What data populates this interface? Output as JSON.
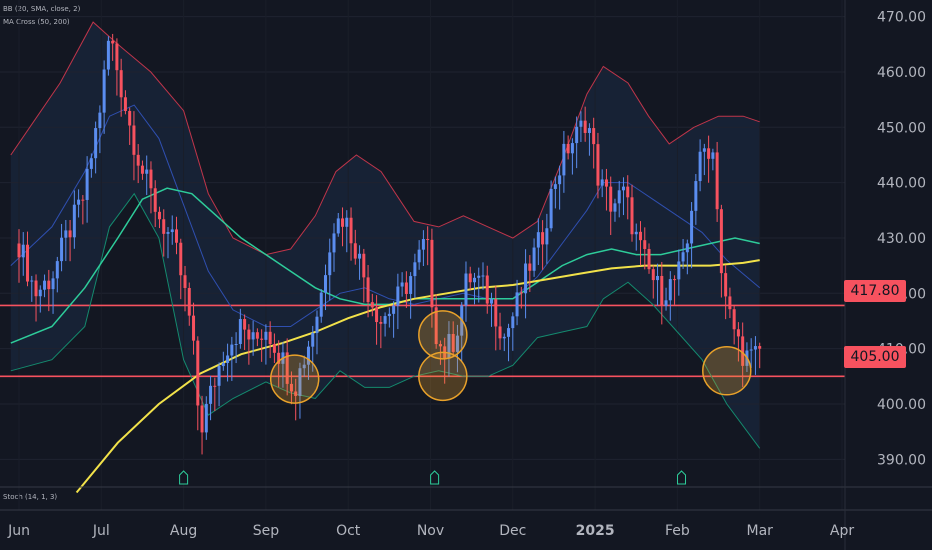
{
  "indicators": {
    "bb": "BB (20, SMA, close, 2)",
    "ma": "MA Cross (50, 200)",
    "stoch": "Stoch (14, 1, 3)"
  },
  "colors": {
    "background": "#131722",
    "candle_up": "#5b8def",
    "candle_down": "#f7525f",
    "bb_upper": "#c0354a",
    "bb_basis": "#2f4fb0",
    "bb_lower": "#148a6e",
    "bb_fill": "#1c2b45",
    "ma50": "#2ecc9a",
    "ma200": "#f2e24a",
    "level_line": "#f7525f",
    "circle": "#e8a12a"
  },
  "chart_data": {
    "type": "line",
    "y_axis": {
      "range": [
        385,
        473
      ],
      "ticks": [
        "470.00",
        "460.00",
        "450.00",
        "440.00",
        "430.00",
        "420.00",
        "410.00",
        "400.00",
        "390.00"
      ],
      "tick_values": [
        470,
        460,
        450,
        440,
        430,
        420,
        410,
        400,
        390
      ]
    },
    "x_axis": {
      "ticks": [
        "Jun",
        "Jul",
        "Aug",
        "Sep",
        "Oct",
        "Nov",
        "Dec",
        "2025",
        "Feb",
        "Mar",
        "Apr"
      ],
      "tick_months": [
        0,
        1,
        2,
        3,
        4,
        5,
        6,
        7,
        8,
        9,
        10
      ]
    },
    "levels": [
      {
        "value": 417.8,
        "label": "417.80"
      },
      {
        "value": 405.0,
        "label": "405.00"
      }
    ],
    "highlights": [
      {
        "month": 3.35,
        "price": 404.5
      },
      {
        "month": 5.15,
        "price": 412.5
      },
      {
        "month": 5.15,
        "price": 405.0
      },
      {
        "month": 8.6,
        "price": 406.0
      }
    ],
    "earnings_markers": [
      2.0,
      5.05,
      8.05
    ],
    "series": [
      {
        "key": "bb_upper",
        "points": [
          [
            -0.1,
            445
          ],
          [
            0.5,
            458
          ],
          [
            0.9,
            469
          ],
          [
            1.2,
            465
          ],
          [
            1.6,
            460
          ],
          [
            2.0,
            453
          ],
          [
            2.3,
            438
          ],
          [
            2.6,
            430
          ],
          [
            3.0,
            427
          ],
          [
            3.3,
            428
          ],
          [
            3.6,
            434
          ],
          [
            3.85,
            442
          ],
          [
            4.1,
            445
          ],
          [
            4.4,
            442
          ],
          [
            4.8,
            433
          ],
          [
            5.1,
            432
          ],
          [
            5.4,
            434
          ],
          [
            5.7,
            432
          ],
          [
            6.0,
            430
          ],
          [
            6.3,
            433
          ],
          [
            6.6,
            444
          ],
          [
            6.9,
            456
          ],
          [
            7.1,
            461
          ],
          [
            7.4,
            458
          ],
          [
            7.65,
            452
          ],
          [
            7.9,
            447
          ],
          [
            8.2,
            450
          ],
          [
            8.5,
            452
          ],
          [
            8.8,
            452
          ],
          [
            9.0,
            451
          ]
        ]
      },
      {
        "key": "bb_basis",
        "points": [
          [
            -0.1,
            425
          ],
          [
            0.4,
            432
          ],
          [
            0.8,
            442
          ],
          [
            1.1,
            452
          ],
          [
            1.4,
            454
          ],
          [
            1.7,
            448
          ],
          [
            2.0,
            436
          ],
          [
            2.3,
            424
          ],
          [
            2.6,
            417
          ],
          [
            3.0,
            414
          ],
          [
            3.3,
            414
          ],
          [
            3.6,
            417
          ],
          [
            3.9,
            420
          ],
          [
            4.2,
            421
          ],
          [
            4.5,
            419
          ],
          [
            4.8,
            418
          ],
          [
            5.1,
            419
          ],
          [
            5.4,
            420
          ],
          [
            5.7,
            419
          ],
          [
            6.0,
            419
          ],
          [
            6.3,
            423
          ],
          [
            6.6,
            429
          ],
          [
            6.9,
            435
          ],
          [
            7.1,
            440
          ],
          [
            7.4,
            440
          ],
          [
            7.7,
            437
          ],
          [
            8.0,
            434
          ],
          [
            8.3,
            431
          ],
          [
            8.6,
            426
          ],
          [
            9.0,
            421
          ]
        ]
      },
      {
        "key": "bb_lower",
        "points": [
          [
            -0.1,
            406
          ],
          [
            0.4,
            408
          ],
          [
            0.8,
            414
          ],
          [
            1.1,
            432
          ],
          [
            1.4,
            438
          ],
          [
            1.7,
            430
          ],
          [
            2.0,
            408
          ],
          [
            2.3,
            398
          ],
          [
            2.6,
            401
          ],
          [
            3.0,
            404
          ],
          [
            3.3,
            402
          ],
          [
            3.6,
            401
          ],
          [
            3.9,
            406
          ],
          [
            4.2,
            403
          ],
          [
            4.5,
            403
          ],
          [
            4.8,
            405
          ],
          [
            5.1,
            406
          ],
          [
            5.4,
            405
          ],
          [
            5.7,
            405
          ],
          [
            6.0,
            407
          ],
          [
            6.3,
            412
          ],
          [
            6.6,
            413
          ],
          [
            6.9,
            414
          ],
          [
            7.1,
            419
          ],
          [
            7.4,
            422
          ],
          [
            7.7,
            418
          ],
          [
            8.0,
            413
          ],
          [
            8.3,
            408
          ],
          [
            8.6,
            400
          ],
          [
            9.0,
            392
          ]
        ]
      },
      {
        "key": "ma50",
        "points": [
          [
            -0.1,
            411
          ],
          [
            0.4,
            414
          ],
          [
            0.8,
            421
          ],
          [
            1.2,
            430
          ],
          [
            1.5,
            437
          ],
          [
            1.8,
            439
          ],
          [
            2.1,
            438
          ],
          [
            2.4,
            434
          ],
          [
            2.7,
            430
          ],
          [
            3.0,
            427
          ],
          [
            3.3,
            424
          ],
          [
            3.6,
            421
          ],
          [
            3.9,
            419
          ],
          [
            4.2,
            418
          ],
          [
            4.5,
            418
          ],
          [
            4.8,
            419
          ],
          [
            5.1,
            419
          ],
          [
            5.4,
            419
          ],
          [
            5.7,
            419
          ],
          [
            6.0,
            419
          ],
          [
            6.3,
            422
          ],
          [
            6.6,
            425
          ],
          [
            6.9,
            427
          ],
          [
            7.2,
            428
          ],
          [
            7.5,
            427
          ],
          [
            7.8,
            427
          ],
          [
            8.1,
            428
          ],
          [
            8.4,
            429
          ],
          [
            8.7,
            430
          ],
          [
            9.0,
            429
          ]
        ]
      },
      {
        "key": "ma200",
        "points": [
          [
            0.7,
            384
          ],
          [
            1.2,
            393
          ],
          [
            1.7,
            400
          ],
          [
            2.2,
            405.5
          ],
          [
            2.7,
            409
          ],
          [
            3.2,
            411
          ],
          [
            3.6,
            413
          ],
          [
            4.0,
            415.5
          ],
          [
            4.4,
            417.5
          ],
          [
            4.8,
            419
          ],
          [
            5.2,
            420
          ],
          [
            5.6,
            421
          ],
          [
            6.0,
            421.5
          ],
          [
            6.4,
            422.5
          ],
          [
            6.8,
            423.5
          ],
          [
            7.2,
            424.5
          ],
          [
            7.6,
            425
          ],
          [
            8.0,
            425
          ],
          [
            8.4,
            425
          ],
          [
            8.8,
            425.5
          ],
          [
            9.0,
            426
          ]
        ]
      }
    ],
    "candles_close": [
      [
        0.0,
        429
      ],
      [
        0.2,
        420
      ],
      [
        0.4,
        423
      ],
      [
        0.6,
        431
      ],
      [
        0.8,
        438
      ],
      [
        1.0,
        455
      ],
      [
        1.1,
        467
      ],
      [
        1.2,
        460
      ],
      [
        1.35,
        450
      ],
      [
        1.5,
        442
      ],
      [
        1.7,
        434
      ],
      [
        1.9,
        428
      ],
      [
        2.0,
        421
      ],
      [
        2.1,
        413
      ],
      [
        2.2,
        395
      ],
      [
        2.35,
        403
      ],
      [
        2.5,
        410
      ],
      [
        2.7,
        414
      ],
      [
        2.85,
        411
      ],
      [
        3.0,
        414
      ],
      [
        3.2,
        408
      ],
      [
        3.35,
        403
      ],
      [
        3.5,
        410
      ],
      [
        3.65,
        418
      ],
      [
        3.8,
        432
      ],
      [
        3.95,
        434
      ],
      [
        4.1,
        428
      ],
      [
        4.25,
        420
      ],
      [
        4.4,
        415
      ],
      [
        4.6,
        419
      ],
      [
        4.8,
        424
      ],
      [
        4.95,
        430
      ],
      [
        5.05,
        414
      ],
      [
        5.15,
        409
      ],
      [
        5.3,
        412
      ],
      [
        5.45,
        423
      ],
      [
        5.6,
        422
      ],
      [
        5.75,
        418
      ],
      [
        5.9,
        412
      ],
      [
        6.05,
        418
      ],
      [
        6.2,
        425
      ],
      [
        6.35,
        430
      ],
      [
        6.5,
        440
      ],
      [
        6.65,
        446
      ],
      [
        6.8,
        449
      ],
      [
        6.9,
        452
      ],
      [
        7.05,
        440
      ],
      [
        7.2,
        436
      ],
      [
        7.35,
        438
      ],
      [
        7.5,
        430
      ],
      [
        7.65,
        424
      ],
      [
        7.8,
        420
      ],
      [
        7.95,
        422
      ],
      [
        8.1,
        426
      ],
      [
        8.2,
        440
      ],
      [
        8.35,
        447
      ],
      [
        8.45,
        445
      ],
      [
        8.55,
        420
      ],
      [
        8.7,
        413
      ],
      [
        8.8,
        409
      ],
      [
        8.9,
        408
      ],
      [
        9.0,
        410
      ]
    ]
  }
}
